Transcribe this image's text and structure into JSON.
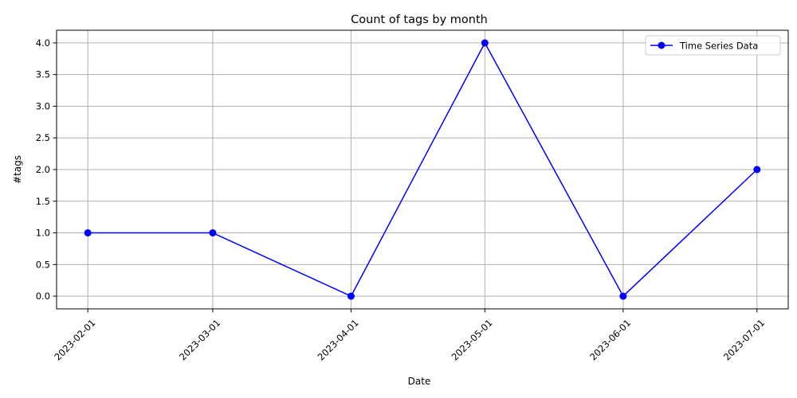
{
  "chart_data": {
    "type": "line",
    "title": "Count of tags by month",
    "xlabel": "Date",
    "ylabel": "#tags",
    "x": [
      "2023-02-01",
      "2023-03-01",
      "2023-04-01",
      "2023-05-01",
      "2023-06-01",
      "2023-07-01"
    ],
    "series": [
      {
        "name": "Time Series Data",
        "values": [
          1,
          1,
          0,
          4,
          0,
          2
        ],
        "color": "#0000ff",
        "marker": "circle"
      }
    ],
    "xlim": [
      "2023-01-25",
      "2023-07-08"
    ],
    "ylim": [
      -0.2,
      4.2
    ],
    "yticks": [
      "0.0",
      "0.5",
      "1.0",
      "1.5",
      "2.0",
      "2.5",
      "3.0",
      "3.5",
      "4.0"
    ],
    "xtick_rotation_deg": 45,
    "grid": true,
    "legend_position": "top-right"
  }
}
